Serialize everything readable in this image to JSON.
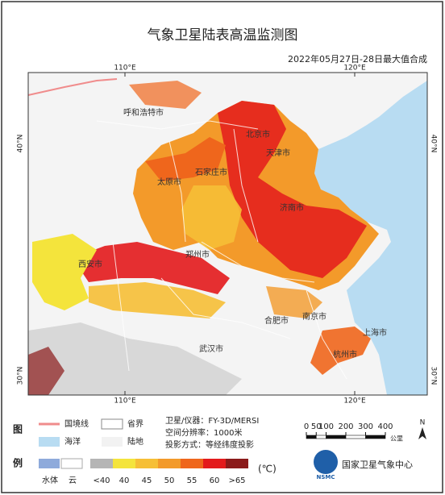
{
  "title": "气象卫星陆表高温监测图",
  "subtitle": "2022年05月27日-28日最大值合成",
  "grid_labels": {
    "lon_top": [
      "110°E",
      "120°E"
    ],
    "lon_bottom": [
      "110°E",
      "120°E"
    ],
    "lat_left": [
      "40°N",
      "30°N"
    ],
    "lat_right": [
      "40°N",
      "30°N"
    ]
  },
  "cities": [
    "呼和浩特市",
    "北京市",
    "天津市",
    "太原市",
    "石家庄市",
    "济南市",
    "西安市",
    "郑州市",
    "南京市",
    "合肥市",
    "上海市",
    "武汉市",
    "杭州市"
  ],
  "legend": {
    "title_chars": [
      "图",
      "例"
    ],
    "lines": [
      {
        "label": "国境线",
        "color": "#f08c8c"
      },
      {
        "label": "省界",
        "color": "#ffffff"
      },
      {
        "label": "海洋",
        "color": "#b8dcf2"
      },
      {
        "label": "陆地",
        "color": "#f2f2f2"
      }
    ],
    "classes": [
      {
        "label": "水体",
        "color": "#8eaadb"
      },
      {
        "label": "云",
        "color": "#ffffff"
      },
      {
        "label": "<40",
        "color": "#b5b5b5"
      },
      {
        "label": "40",
        "color": "#f4e43c"
      },
      {
        "label": "45",
        "color": "#f6bf36"
      },
      {
        "label": "50",
        "color": "#f39a2a"
      },
      {
        "label": "55",
        "color": "#ef661c"
      },
      {
        "label": "60",
        "color": "#e31a1c"
      },
      {
        "label": ">65",
        "color": "#8b1a1a"
      }
    ],
    "unit": "(℃)"
  },
  "info": [
    "卫星/仪器：FY-3D/MERSI",
    "空间分辨率：1000米",
    "投影方式：等经纬度投影"
  ],
  "scale": {
    "ticks": [
      0,
      50,
      100,
      200,
      300,
      400
    ],
    "unit": "公里"
  },
  "north": "N",
  "logo": "NSMC",
  "org": "国家卫星气象中心"
}
